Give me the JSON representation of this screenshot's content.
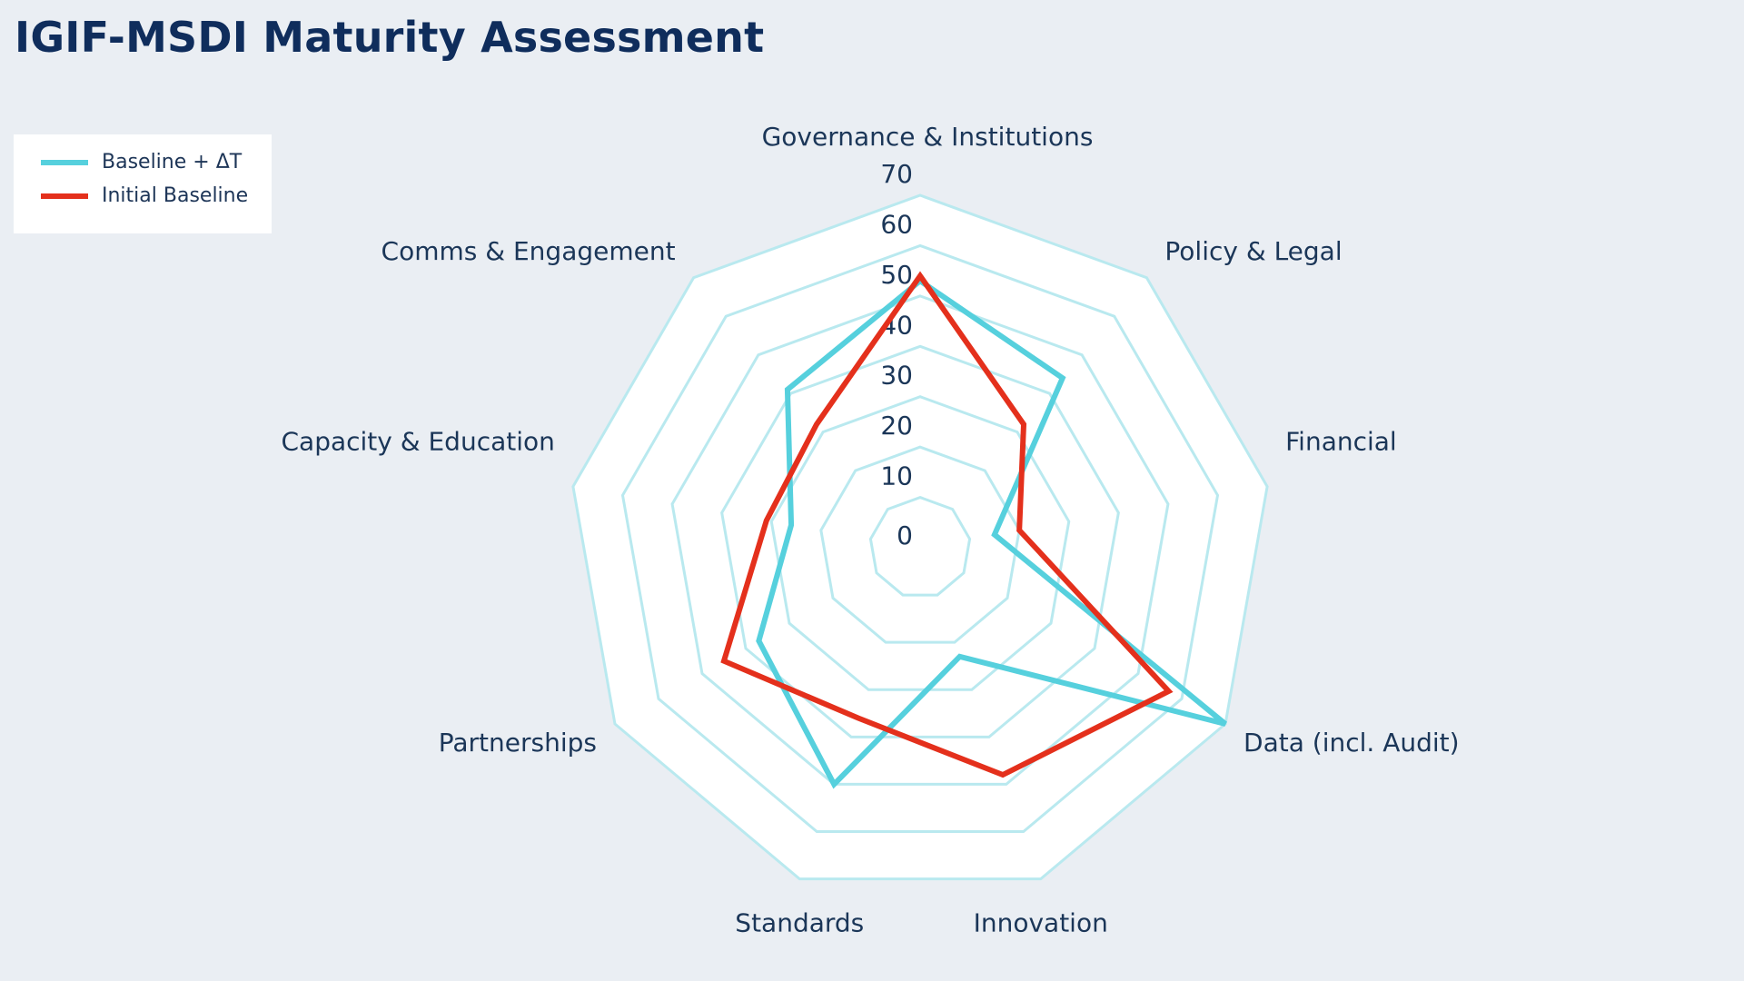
{
  "chart_data": {
    "type": "radar",
    "title": "IGIF-MSDI Maturity Assessment",
    "categories": [
      "Governance & Institutions",
      "Policy & Legal",
      "Financial",
      "Data (incl. Audit)",
      "Innovation",
      "Standards",
      "Partnerships",
      "Capacity & Education",
      "Comms & Engagement"
    ],
    "radial_ticks": [
      0,
      10,
      20,
      30,
      40,
      50,
      60,
      70
    ],
    "rlim": [
      0,
      70
    ],
    "grid": true,
    "legend_position": "top-left",
    "series": [
      {
        "name": "Baseline + ΔT",
        "color": "#56d0dd",
        "values": [
          53,
          44,
          15,
          70,
          23,
          50,
          37,
          26,
          41
        ]
      },
      {
        "name": "Initial Baseline",
        "color": "#e4301c",
        "values": [
          54,
          32,
          20,
          57,
          48,
          36,
          45,
          31,
          32
        ]
      }
    ],
    "grid_color": "#b9e9ef",
    "background": "#eaeef3"
  }
}
